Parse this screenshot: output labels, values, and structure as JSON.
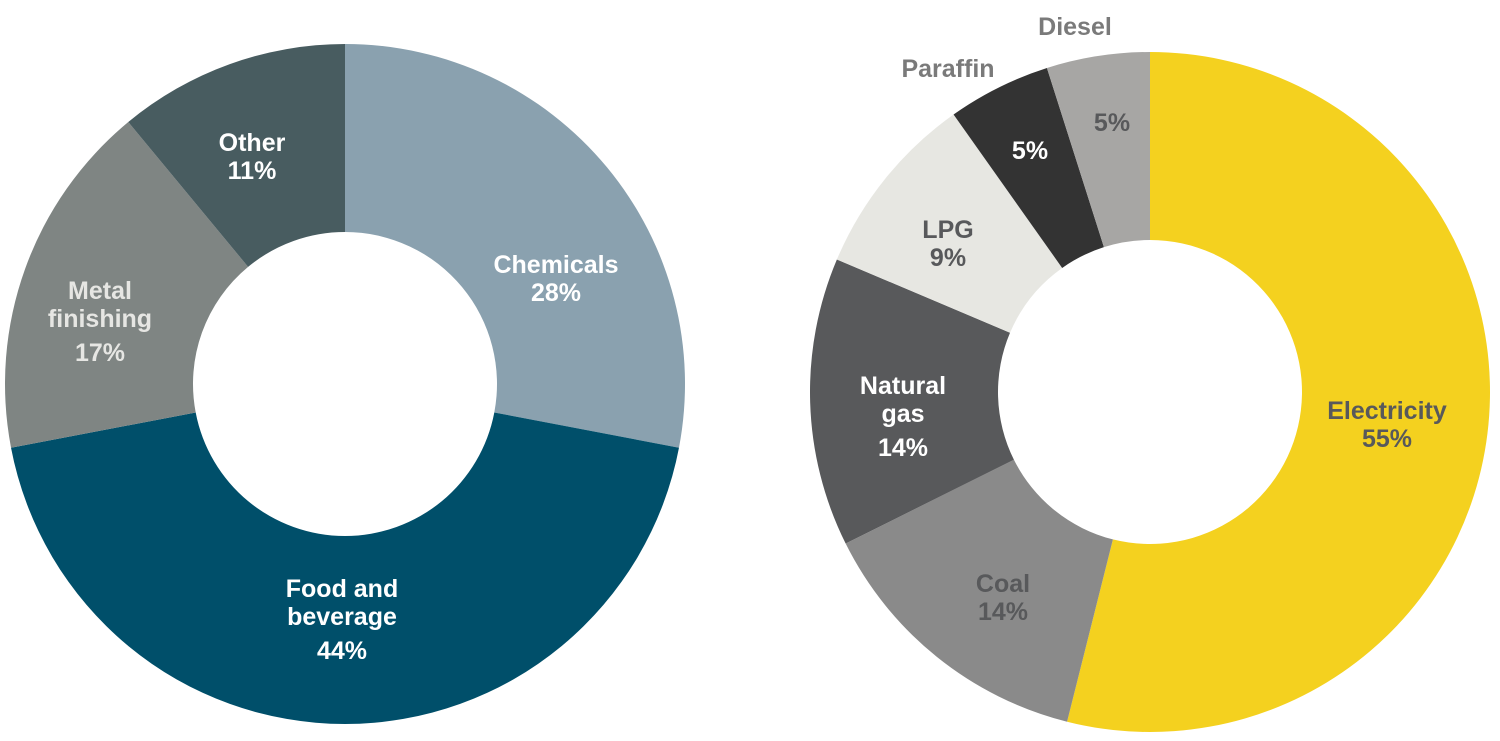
{
  "chart_data": [
    {
      "type": "pie",
      "variant": "donut",
      "categories": [
        "Chemicals",
        "Food and beverage",
        "Metal finishing",
        "Other"
      ],
      "values": [
        28,
        44,
        17,
        11
      ],
      "unit": "%",
      "colors": [
        "#8aa1af",
        "#004f6a",
        "#7f8583",
        "#485c60"
      ],
      "label_colors": [
        "#ffffff",
        "#ffffff",
        "#e6e6e3",
        "#ffffff"
      ],
      "labels": [
        {
          "lines": [
            "Chemicals"
          ],
          "value": "28%"
        },
        {
          "lines": [
            "Food and",
            "beverage"
          ],
          "value": "44%"
        },
        {
          "lines": [
            "Metal",
            "finishing"
          ],
          "value": "17%"
        },
        {
          "lines": [
            "Other"
          ],
          "value": "11%"
        }
      ],
      "start_angle_deg": 0,
      "direction": "clockwise",
      "legend": "none"
    },
    {
      "type": "pie",
      "variant": "donut",
      "categories": [
        "Electricity",
        "Coal",
        "Natural gas",
        "LPG",
        "Paraffin",
        "Diesel"
      ],
      "values": [
        55,
        14,
        14,
        9,
        5,
        5
      ],
      "unit": "%",
      "colors": [
        "#f4d11f",
        "#8a8a8a",
        "#58595b",
        "#e7e7e2",
        "#333333",
        "#a7a6a4"
      ],
      "label_colors": [
        "#58595b",
        "#58595b",
        "#ffffff",
        "#58595b",
        "#ffffff",
        "#58595b"
      ],
      "labels": [
        {
          "lines": [
            "Electricity"
          ],
          "value": "55%"
        },
        {
          "lines": [
            "Coal"
          ],
          "value": "14%"
        },
        {
          "lines": [
            "Natural",
            "gas"
          ],
          "value": "14%"
        },
        {
          "lines": [
            "LPG"
          ],
          "value": "9%"
        },
        {
          "lines": [
            "Paraffin"
          ],
          "value": "5%",
          "name_outside": true
        },
        {
          "lines": [
            "Diesel"
          ],
          "value": "5%",
          "name_outside": true
        }
      ],
      "outside_label_color": "#7a7a7a",
      "start_angle_deg": 0,
      "direction": "clockwise",
      "legend": "none"
    }
  ]
}
